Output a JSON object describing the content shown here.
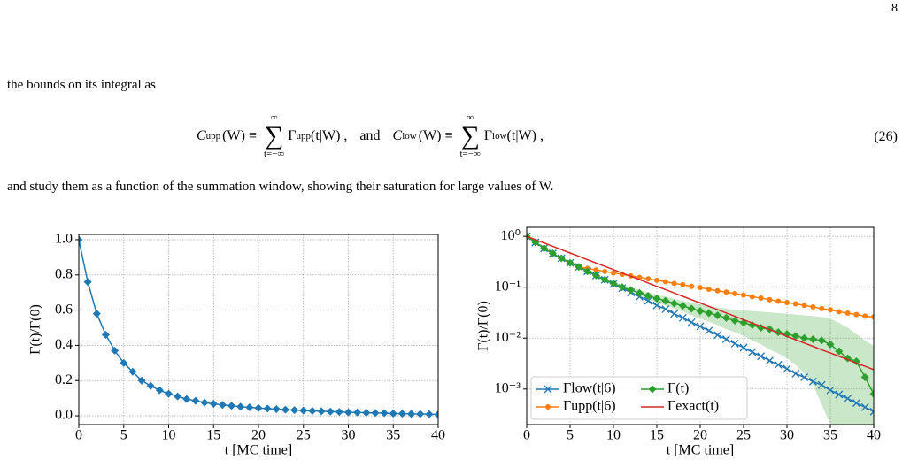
{
  "page_number": "8",
  "paragraph_1": "the bounds on its integral as",
  "equation": {
    "lhs1": "C",
    "lhs1_sub": "upp",
    "arg1": "(W) ≡",
    "sum_symbol": "∑",
    "sum_top": "∞",
    "sum_bottom": "t=−∞",
    "term1": "Γ",
    "term1_sub": "upp",
    "term1_arg": "(t|W) ,",
    "conj": "and",
    "lhs2": "C",
    "lhs2_sub": "low",
    "arg2": "(W) ≡",
    "term2": "Γ",
    "term2_sub": "low",
    "term2_arg": "(t|W) ,",
    "number": "(26)"
  },
  "paragraph_2": "and study them as a function of the summation window, showing their saturation for large values of W.",
  "chart_data": [
    {
      "type": "line",
      "xlabel": "t [MC time]",
      "ylabel": "Γ(t)/Γ(0)",
      "x": [
        0,
        1,
        2,
        3,
        4,
        5,
        6,
        7,
        8,
        9,
        10,
        11,
        12,
        13,
        14,
        15,
        16,
        17,
        18,
        19,
        20,
        21,
        22,
        23,
        24,
        25,
        26,
        27,
        28,
        29,
        30,
        31,
        32,
        33,
        34,
        35,
        36,
        37,
        38,
        39,
        40
      ],
      "xlim": [
        0,
        40
      ],
      "xticks": [
        0,
        5,
        10,
        15,
        20,
        25,
        30,
        35,
        40
      ],
      "ylim": [
        -0.05,
        1.03
      ],
      "yticks": [
        {
          "value": 0,
          "label": "0.0"
        },
        0.2,
        0.4,
        0.6,
        0.8,
        {
          "value": 1,
          "label": "1.0"
        }
      ],
      "grid": true,
      "series": [
        {
          "color": "#1f77b4",
          "marker": "diamond",
          "values": [
            1.0,
            0.76,
            0.58,
            0.46,
            0.37,
            0.3,
            0.25,
            0.2,
            0.17,
            0.145,
            0.125,
            0.11,
            0.095,
            0.085,
            0.075,
            0.068,
            0.062,
            0.057,
            0.052,
            0.048,
            0.044,
            0.041,
            0.038,
            0.035,
            0.032,
            0.03,
            0.028,
            0.026,
            0.024,
            0.022,
            0.02,
            0.019,
            0.017,
            0.016,
            0.015,
            0.013,
            0.012,
            0.011,
            0.01,
            0.009,
            0.008
          ]
        }
      ]
    },
    {
      "type": "line",
      "xlabel": "t [MC time]",
      "ylabel": "Γ(t)/Γ(0)",
      "yscale": "log",
      "x": [
        0,
        1,
        2,
        3,
        4,
        5,
        6,
        7,
        8,
        9,
        10,
        11,
        12,
        13,
        14,
        15,
        16,
        17,
        18,
        19,
        20,
        21,
        22,
        23,
        24,
        25,
        26,
        27,
        28,
        29,
        30,
        31,
        32,
        33,
        34,
        35,
        36,
        37,
        38,
        39,
        40
      ],
      "xlim": [
        0,
        40
      ],
      "xticks": [
        0,
        5,
        10,
        15,
        20,
        25,
        30,
        35,
        40
      ],
      "ylim": [
        0.0002,
        1.5
      ],
      "yticks": [
        {
          "value": 1,
          "label": "10⁰"
        },
        {
          "value": 0.1,
          "label": "10⁻¹"
        },
        {
          "value": 0.01,
          "label": "10⁻²"
        },
        {
          "value": 0.001,
          "label": "10⁻³"
        }
      ],
      "grid": true,
      "legend": "lower left",
      "series": [
        {
          "name": "Γlow(t|6)",
          "color": "#1f77b4",
          "marker": "x",
          "values": [
            1,
            0.76,
            0.58,
            0.46,
            0.37,
            0.3,
            0.25,
            0.206,
            0.17,
            0.14,
            0.116,
            0.096,
            0.079,
            0.065,
            0.054,
            0.044,
            0.037,
            0.03,
            0.025,
            0.0205,
            0.017,
            0.014,
            0.0115,
            0.0095,
            0.0078,
            0.0065,
            0.0053,
            0.0044,
            0.0036,
            0.003,
            0.0025,
            0.002,
            0.0017,
            0.0014,
            0.0012,
            0.00095,
            0.00078,
            0.00065,
            0.00053,
            0.00044,
            0.00036
          ]
        },
        {
          "name": "Γupp(t|6)",
          "color": "#ff7f0e",
          "marker": "circle",
          "values": [
            1,
            0.76,
            0.58,
            0.46,
            0.37,
            0.3,
            0.25,
            0.234,
            0.219,
            0.204,
            0.191,
            0.179,
            0.167,
            0.156,
            0.146,
            0.137,
            0.128,
            0.119,
            0.112,
            0.104,
            0.098,
            0.091,
            0.085,
            0.08,
            0.075,
            0.07,
            0.065,
            0.061,
            0.057,
            0.053,
            0.05,
            0.047,
            0.044,
            0.041,
            0.038,
            0.036,
            0.033,
            0.031,
            0.029,
            0.027,
            0.026
          ]
        },
        {
          "name": "Γ(t)",
          "color": "#2ca02c",
          "marker": "diamond",
          "values": [
            1,
            0.76,
            0.58,
            0.46,
            0.37,
            0.3,
            0.25,
            0.205,
            0.17,
            0.14,
            0.118,
            0.1,
            0.088,
            0.077,
            0.068,
            0.06,
            0.054,
            0.048,
            0.043,
            0.038,
            0.034,
            0.031,
            0.028,
            0.025,
            0.022,
            0.02,
            0.018,
            0.016,
            0.015,
            0.013,
            0.012,
            0.011,
            0.01,
            0.0095,
            0.009,
            0.0075,
            0.0055,
            0.004,
            0.0035,
            0.0017,
            0.0008
          ],
          "band": {
            "lower": [
              1,
              0.75,
              0.57,
              0.45,
              0.36,
              0.29,
              0.24,
              0.195,
              0.16,
              0.13,
              0.108,
              0.09,
              0.078,
              0.067,
              0.058,
              0.05,
              0.044,
              0.038,
              0.033,
              0.028,
              0.024,
              0.021,
              0.018,
              0.015,
              0.013,
              0.011,
              0.009,
              0.0075,
              0.006,
              0.005,
              0.004,
              0.003,
              0.002,
              0.0012,
              0.0005,
              0.0002,
              0.0002,
              0.0002,
              0.0002,
              0.0002,
              0.0002
            ],
            "upper": [
              1,
              0.77,
              0.59,
              0.47,
              0.38,
              0.31,
              0.26,
              0.215,
              0.18,
              0.15,
              0.128,
              0.11,
              0.098,
              0.088,
              0.079,
              0.071,
              0.065,
              0.059,
              0.054,
              0.05,
              0.046,
              0.043,
              0.04,
              0.038,
              0.036,
              0.035,
              0.034,
              0.033,
              0.032,
              0.031,
              0.03,
              0.029,
              0.028,
              0.027,
              0.026,
              0.024,
              0.02,
              0.016,
              0.012,
              0.009,
              0.007
            ]
          }
        },
        {
          "name": "Γexact(t)",
          "color": "#d62728",
          "marker": "none",
          "values": [
            1,
            0.86,
            0.74,
            0.636,
            0.547,
            0.47,
            0.405,
            0.348,
            0.299,
            0.257,
            0.221,
            0.19,
            0.164,
            0.141,
            0.121,
            0.104,
            0.0895,
            0.077,
            0.0662,
            0.0569,
            0.049,
            0.0421,
            0.0362,
            0.0312,
            0.0268,
            0.023,
            0.0198,
            0.0171,
            0.0147,
            0.0126,
            0.0108,
            0.0093,
            0.008,
            0.0069,
            0.0059,
            0.0051,
            0.0044,
            0.0038,
            0.0032,
            0.0028,
            0.0024
          ]
        }
      ]
    }
  ]
}
